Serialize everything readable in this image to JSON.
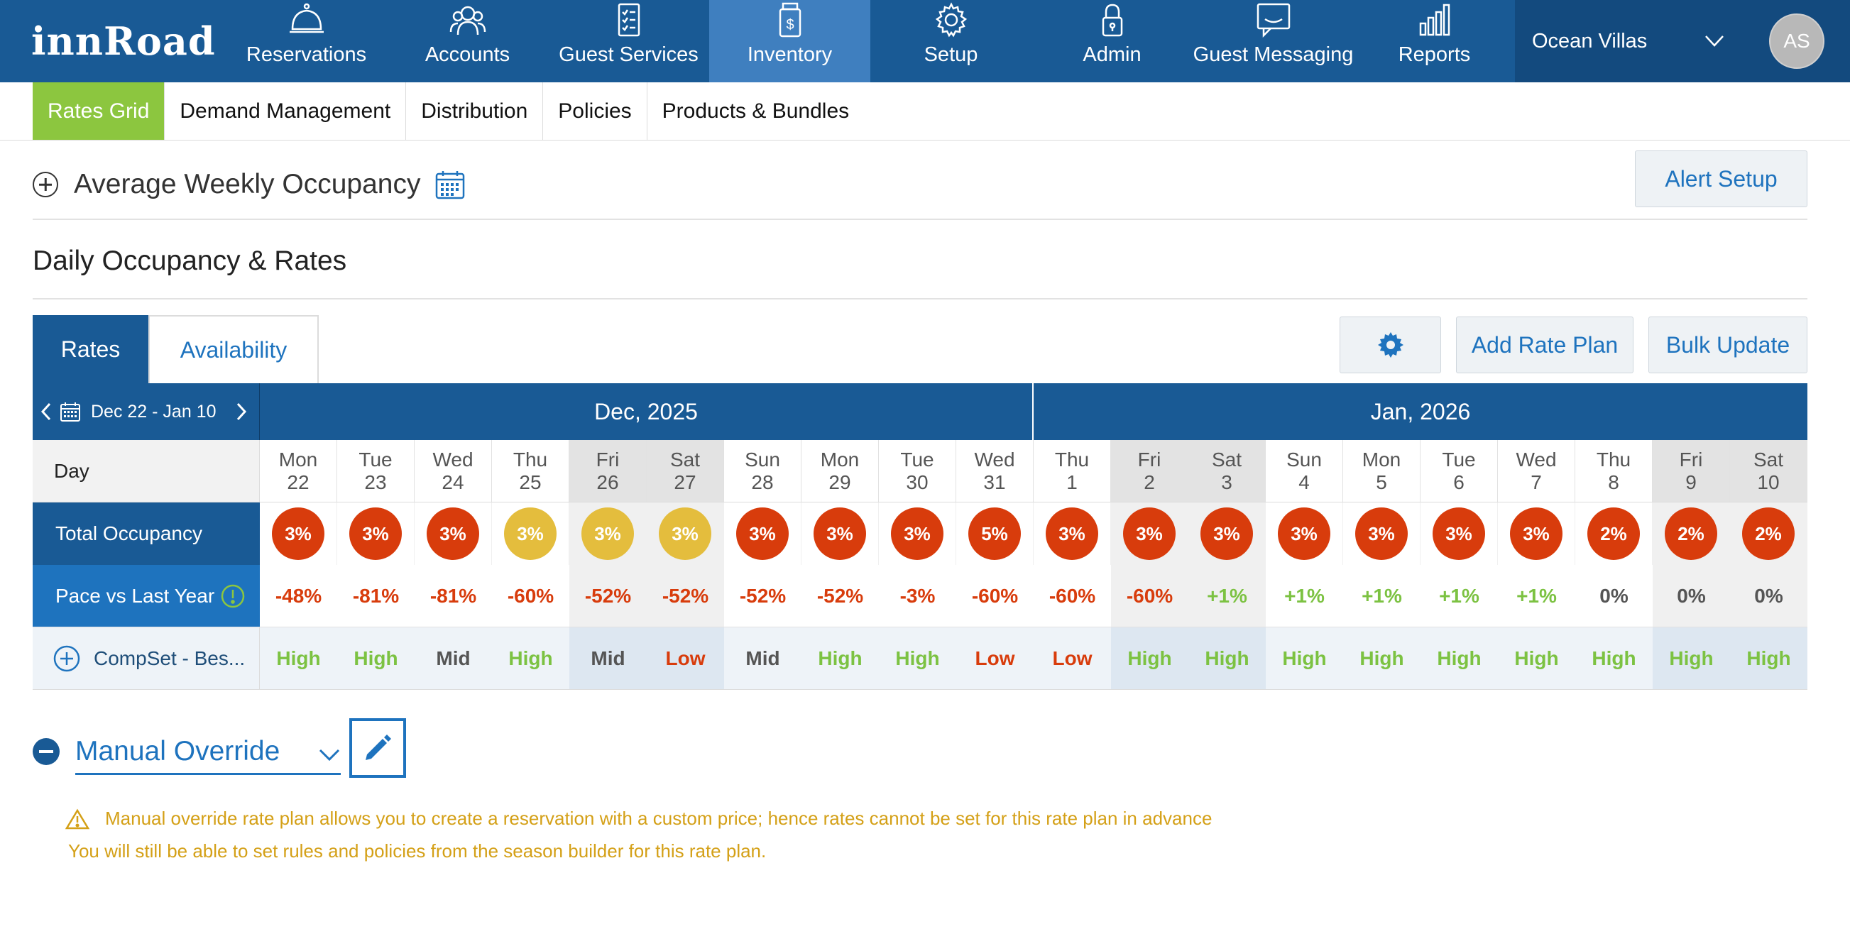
{
  "app": {
    "logo": "innRoad"
  },
  "nav": {
    "items": [
      {
        "label": "Reservations",
        "icon": "bell-icon",
        "name": "nav-reservations"
      },
      {
        "label": "Accounts",
        "icon": "users-icon",
        "name": "nav-accounts"
      },
      {
        "label": "Guest Services",
        "icon": "clipboard-icon",
        "name": "nav-guest-services"
      },
      {
        "label": "Inventory",
        "icon": "jar-dollar-icon",
        "name": "nav-inventory"
      },
      {
        "label": "Setup",
        "icon": "gear-icon",
        "name": "nav-setup"
      },
      {
        "label": "Admin",
        "icon": "lock-icon",
        "name": "nav-admin"
      },
      {
        "label": "Guest Messaging",
        "icon": "chat-icon",
        "name": "nav-guest-messaging"
      },
      {
        "label": "Reports",
        "icon": "bar-chart-icon",
        "name": "nav-reports"
      }
    ],
    "active": "Inventory",
    "property": "Ocean Villas",
    "avatar": "AS"
  },
  "subnav": {
    "items": [
      "Rates Grid",
      "Demand Management",
      "Distribution",
      "Policies",
      "Products & Bundles"
    ],
    "active": "Rates Grid"
  },
  "awo": {
    "title": "Average Weekly Occupancy"
  },
  "alert_setup": "Alert Setup",
  "daily_title": "Daily Occupancy & Rates",
  "tabs": {
    "rates": "Rates",
    "availability": "Availability"
  },
  "buttons": {
    "add_rate_plan": "Add Rate Plan",
    "bulk_update": "Bulk Update"
  },
  "grid": {
    "date_range": "Dec 22 - Jan 10",
    "months": [
      "Dec, 2025",
      "Jan, 2026"
    ],
    "day_label": "Day",
    "days": [
      {
        "dow": "Mon",
        "date": "22",
        "weekend": false
      },
      {
        "dow": "Tue",
        "date": "23",
        "weekend": false
      },
      {
        "dow": "Wed",
        "date": "24",
        "weekend": false
      },
      {
        "dow": "Thu",
        "date": "25",
        "weekend": false
      },
      {
        "dow": "Fri",
        "date": "26",
        "weekend": true
      },
      {
        "dow": "Sat",
        "date": "27",
        "weekend": true
      },
      {
        "dow": "Sun",
        "date": "28",
        "weekend": false
      },
      {
        "dow": "Mon",
        "date": "29",
        "weekend": false
      },
      {
        "dow": "Tue",
        "date": "30",
        "weekend": false
      },
      {
        "dow": "Wed",
        "date": "31",
        "weekend": false
      },
      {
        "dow": "Thu",
        "date": "1",
        "weekend": false
      },
      {
        "dow": "Fri",
        "date": "2",
        "weekend": true
      },
      {
        "dow": "Sat",
        "date": "3",
        "weekend": true
      },
      {
        "dow": "Sun",
        "date": "4",
        "weekend": false
      },
      {
        "dow": "Mon",
        "date": "5",
        "weekend": false
      },
      {
        "dow": "Tue",
        "date": "6",
        "weekend": false
      },
      {
        "dow": "Wed",
        "date": "7",
        "weekend": false
      },
      {
        "dow": "Thu",
        "date": "8",
        "weekend": false
      },
      {
        "dow": "Fri",
        "date": "9",
        "weekend": true
      },
      {
        "dow": "Sat",
        "date": "10",
        "weekend": true
      }
    ],
    "total_occupancy_label": "Total Occupancy",
    "occupancy": [
      "3%",
      "3%",
      "3%",
      "3%",
      "3%",
      "3%",
      "3%",
      "3%",
      "3%",
      "5%",
      "3%",
      "3%",
      "3%",
      "3%",
      "3%",
      "3%",
      "3%",
      "2%",
      "2%",
      "2%"
    ],
    "occupancy_level": [
      "red",
      "red",
      "red",
      "yellow",
      "yellow",
      "yellow",
      "red",
      "red",
      "red",
      "red",
      "red",
      "red",
      "red",
      "red",
      "red",
      "red",
      "red",
      "red",
      "red",
      "red"
    ],
    "pace_label": "Pace vs Last Year",
    "pace": [
      "-48%",
      "-81%",
      "-81%",
      "-60%",
      "-52%",
      "-52%",
      "-52%",
      "-52%",
      "-3%",
      "-60%",
      "-60%",
      "-60%",
      "+1%",
      "+1%",
      "+1%",
      "+1%",
      "+1%",
      "0%",
      "0%",
      "0%"
    ],
    "compset_label": "CompSet - Bes...",
    "compset": [
      "High",
      "High",
      "Mid",
      "High",
      "Mid",
      "Low",
      "Mid",
      "High",
      "High",
      "Low",
      "Low",
      "High",
      "High",
      "High",
      "High",
      "High",
      "High",
      "High",
      "High",
      "High"
    ]
  },
  "manual_override": {
    "label": "Manual Override",
    "warning_line1": "Manual override rate plan allows you to create a reservation with a custom price; hence rates cannot be set for this rate plan in advance",
    "warning_line2": "You will still be able to set rules and policies from the season builder for this rate plan."
  },
  "colors": {
    "brand": "#195a95",
    "accent_green": "#8cc63f",
    "occ_red": "#d83c0c",
    "occ_yellow": "#e4bd3d",
    "negative": "#d83c0c",
    "positive": "#7cc242",
    "neutral": "#555555",
    "warning": "#d4a017"
  }
}
